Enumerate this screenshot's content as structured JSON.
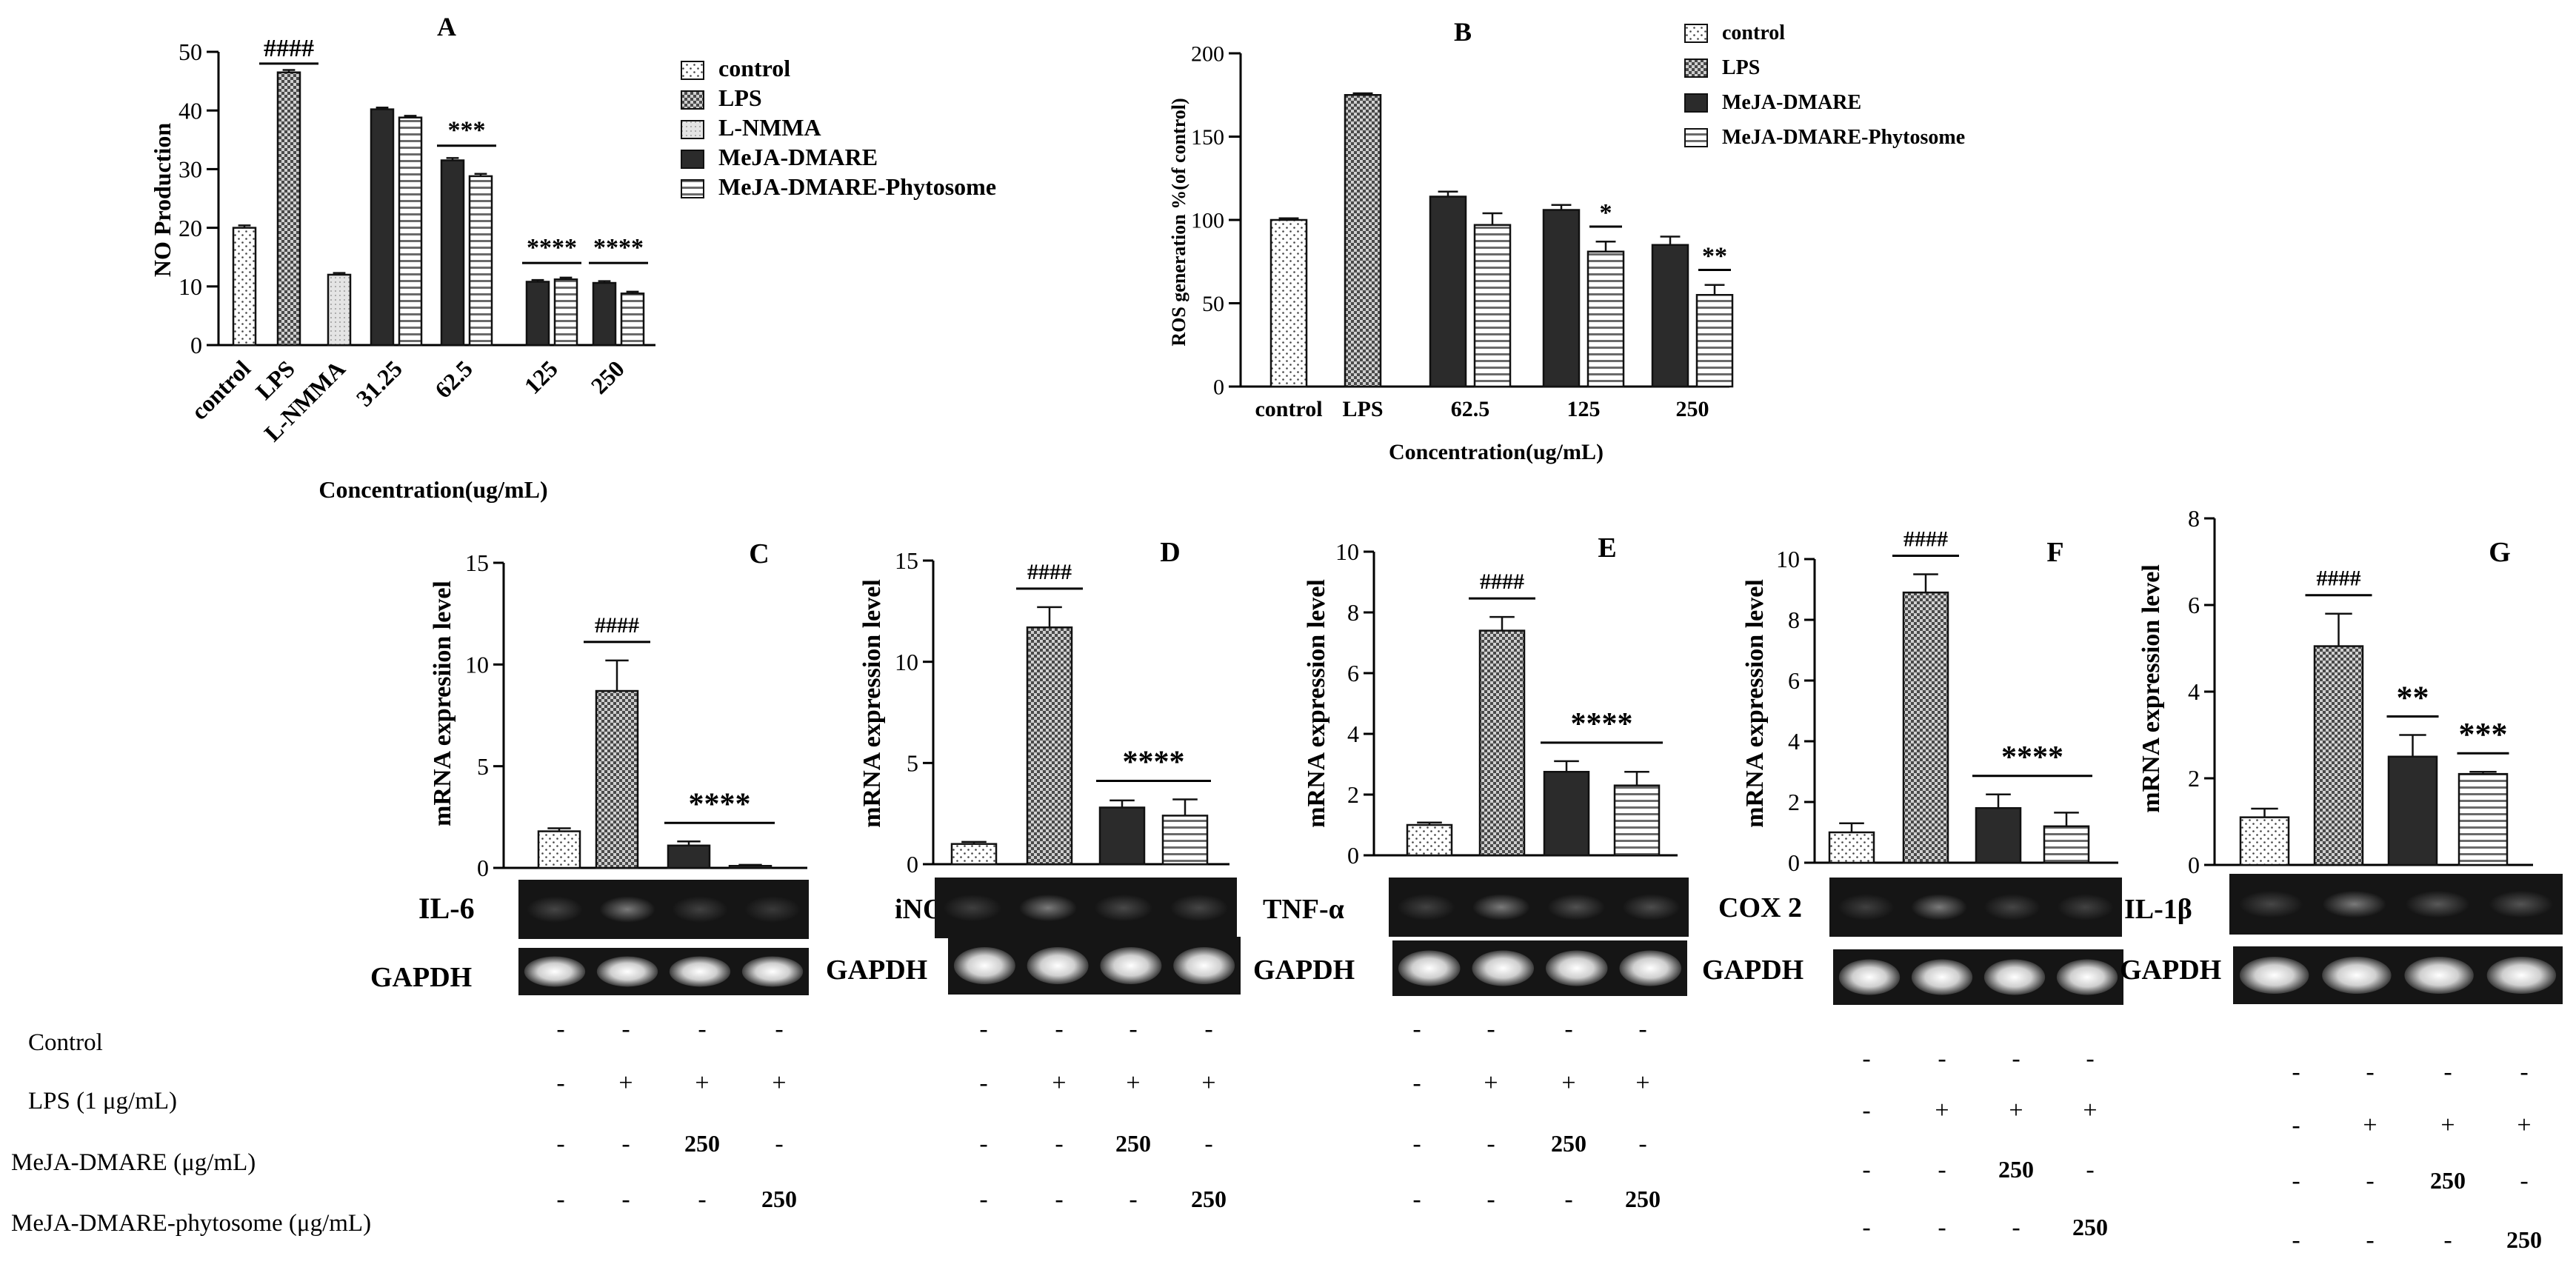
{
  "figure": {
    "x_axis_label": "Concentration(ug/mL)",
    "treatment_row_labels": [
      "Control",
      "LPS (1 μg/mL)",
      "MeJA-DMARE (μg/mL)",
      "MeJA-DMARE-phytosome (μg/mL)"
    ],
    "loading_control_label": "GAPDH"
  },
  "colors": {
    "bar_outline": "#111111",
    "dark_bar": "#2b2b2b",
    "gel_background": "#151515",
    "band": "#d8d8d8"
  },
  "chart_data": [
    {
      "id": "A",
      "type": "bar",
      "title": "A",
      "ylabel": "NO Production",
      "xlabel": "Concentration(ug/mL)",
      "ylim": [
        0,
        50
      ],
      "yticks": [
        "0",
        "10",
        "20",
        "30",
        "40",
        "50"
      ],
      "categories": [
        "control",
        "LPS",
        "L-NMMA",
        "31.25",
        "62.5",
        "125",
        "250"
      ],
      "legend": [
        "control",
        "LPS",
        "L-NMMA",
        "MeJA-DMARE",
        "MeJA-DMARE-Phytosome"
      ],
      "bars": [
        {
          "series": "control",
          "group": 0,
          "value": 20.0,
          "err": 0.4
        },
        {
          "series": "LPS",
          "group": 1,
          "value": 46.5,
          "err": 0.4
        },
        {
          "series": "L-NMMA",
          "group": 2,
          "value": 12.0,
          "err": 0.3
        },
        {
          "series": "MeJA-DMARE",
          "group": 3,
          "value": 40.2,
          "err": 0.3
        },
        {
          "series": "MeJA-DMARE-Phytosome",
          "group": 3,
          "value": 38.8,
          "err": 0.3
        },
        {
          "series": "MeJA-DMARE",
          "group": 4,
          "value": 31.5,
          "err": 0.4
        },
        {
          "series": "MeJA-DMARE-Phytosome",
          "group": 4,
          "value": 28.8,
          "err": 0.4
        },
        {
          "series": "MeJA-DMARE",
          "group": 5,
          "value": 10.8,
          "err": 0.3
        },
        {
          "series": "MeJA-DMARE-Phytosome",
          "group": 5,
          "value": 11.2,
          "err": 0.3
        },
        {
          "series": "MeJA-DMARE",
          "group": 6,
          "value": 10.6,
          "err": 0.3
        },
        {
          "series": "MeJA-DMARE-Phytosome",
          "group": 6,
          "value": 8.8,
          "err": 0.3
        }
      ],
      "annotations": [
        {
          "text": "####",
          "group": 1,
          "y": 48
        },
        {
          "text": "***",
          "group": 4,
          "y": 34
        },
        {
          "text": "****",
          "group": 5,
          "y": 14
        },
        {
          "text": "****",
          "group": 6,
          "y": 14
        }
      ]
    },
    {
      "id": "B",
      "type": "bar",
      "title": "B",
      "ylabel": "ROS generation %(of control)",
      "xlabel": "Concentration(ug/mL)",
      "ylim": [
        0,
        200
      ],
      "yticks": [
        "0",
        "50",
        "100",
        "150",
        "200"
      ],
      "categories": [
        "control",
        "LPS",
        "62.5",
        "125",
        "250"
      ],
      "legend": [
        "control",
        "LPS",
        "MeJA-DMARE",
        "MeJA-DMARE-Phytosome"
      ],
      "bars": [
        {
          "series": "control",
          "group": 0,
          "value": 100,
          "err": 1
        },
        {
          "series": "LPS",
          "group": 1,
          "value": 175,
          "err": 1
        },
        {
          "series": "MeJA-DMARE",
          "group": 2,
          "value": 114,
          "err": 3
        },
        {
          "series": "MeJA-DMARE-Phytosome",
          "group": 2,
          "value": 97,
          "err": 7
        },
        {
          "series": "MeJA-DMARE",
          "group": 3,
          "value": 106,
          "err": 3
        },
        {
          "series": "MeJA-DMARE-Phytosome",
          "group": 3,
          "value": 81,
          "err": 6
        },
        {
          "series": "MeJA-DMARE",
          "group": 4,
          "value": 85,
          "err": 5
        },
        {
          "series": "MeJA-DMARE-Phytosome",
          "group": 4,
          "value": 55,
          "err": 6
        }
      ],
      "annotations": [
        {
          "text": "*",
          "group": 3,
          "y": 96
        },
        {
          "text": "**",
          "group": 4,
          "y": 70
        }
      ]
    },
    {
      "id": "C",
      "type": "bar",
      "title": "C",
      "gene": "IL-6",
      "ylabel": "mRNA expresiion level",
      "ylim": [
        0,
        15
      ],
      "yticks": [
        "0",
        "5",
        "10",
        "15"
      ],
      "categories": [
        "Control",
        "LPS",
        "MeJA-DMARE",
        "MeJA-DMARE-phytosome"
      ],
      "values": [
        1.8,
        8.7,
        1.1,
        0.1
      ],
      "errors": [
        0.15,
        1.5,
        0.2,
        0.05
      ],
      "sig_top": "####",
      "sig_bottom": "****",
      "treatments": [
        [
          "-",
          "-",
          "-",
          "-"
        ],
        [
          "-",
          "+",
          "+",
          "+"
        ],
        [
          "-",
          "-",
          "250",
          "-"
        ],
        [
          "-",
          "-",
          "-",
          "250"
        ]
      ]
    },
    {
      "id": "D",
      "type": "bar",
      "title": "D",
      "gene": "iNOS",
      "ylabel": "mRNA expression level",
      "ylim": [
        0,
        15
      ],
      "yticks": [
        "0",
        "5",
        "10",
        "15"
      ],
      "categories": [
        "Control",
        "LPS",
        "MeJA-DMARE",
        "MeJA-DMARE-phytosome"
      ],
      "values": [
        1.0,
        11.7,
        2.8,
        2.4
      ],
      "errors": [
        0.1,
        1.0,
        0.35,
        0.8
      ],
      "sig_top": "####",
      "sig_bottom": "****",
      "treatments": [
        [
          "-",
          "-",
          "-",
          "-"
        ],
        [
          "-",
          "+",
          "+",
          "+"
        ],
        [
          "-",
          "-",
          "250",
          "-"
        ],
        [
          "-",
          "-",
          "-",
          "250"
        ]
      ]
    },
    {
      "id": "E",
      "type": "bar",
      "title": "E",
      "gene": "TNF-α",
      "ylabel": "mRNA expression level",
      "ylim": [
        0,
        10
      ],
      "yticks": [
        "0",
        "2",
        "4",
        "6",
        "8",
        "10"
      ],
      "categories": [
        "Control",
        "LPS",
        "MeJA-DMARE",
        "MeJA-DMARE-phytosome"
      ],
      "values": [
        1.0,
        7.4,
        2.75,
        2.3
      ],
      "errors": [
        0.08,
        0.45,
        0.35,
        0.45
      ],
      "sig_top": "####",
      "sig_bottom": "****",
      "treatments": [
        [
          "-",
          "-",
          "-",
          "-"
        ],
        [
          "-",
          "+",
          "+",
          "+"
        ],
        [
          "-",
          "-",
          "250",
          "-"
        ],
        [
          "-",
          "-",
          "-",
          "250"
        ]
      ]
    },
    {
      "id": "F",
      "type": "bar",
      "title": "F",
      "gene": "COX 2",
      "ylabel": "mRNA expression level",
      "ylim": [
        0,
        10
      ],
      "yticks": [
        "0",
        "2",
        "4",
        "6",
        "8",
        "10"
      ],
      "categories": [
        "Control",
        "LPS",
        "MeJA-DMARE",
        "MeJA-DMARE-phytosome"
      ],
      "values": [
        1.0,
        8.9,
        1.8,
        1.2
      ],
      "errors": [
        0.3,
        0.6,
        0.45,
        0.45
      ],
      "sig_top": "####",
      "sig_bottom": "****",
      "treatments": [
        [
          "-",
          "-",
          "-",
          "-"
        ],
        [
          "-",
          "+",
          "+",
          "+"
        ],
        [
          "-",
          "-",
          "250",
          "-"
        ],
        [
          "-",
          "-",
          "-",
          "250"
        ]
      ]
    },
    {
      "id": "G",
      "type": "bar",
      "title": "G",
      "gene": "IL-1β",
      "ylabel": "mRNA expression level",
      "ylim": [
        0,
        8
      ],
      "yticks": [
        "0",
        "2",
        "4",
        "6",
        "8"
      ],
      "categories": [
        "Control",
        "LPS",
        "MeJA-DMARE",
        "MeJA-DMARE-phytosome"
      ],
      "values": [
        1.1,
        5.05,
        2.5,
        2.1
      ],
      "errors": [
        0.2,
        0.75,
        0.5,
        0.05
      ],
      "sig_top": "####",
      "sig_mid": "**",
      "sig_bottom": "***",
      "treatments": [
        [
          "-",
          "-",
          "-",
          "-"
        ],
        [
          "-",
          "+",
          "+",
          "+"
        ],
        [
          "-",
          "-",
          "250",
          "-"
        ],
        [
          "-",
          "-",
          "-",
          "250"
        ]
      ]
    }
  ]
}
